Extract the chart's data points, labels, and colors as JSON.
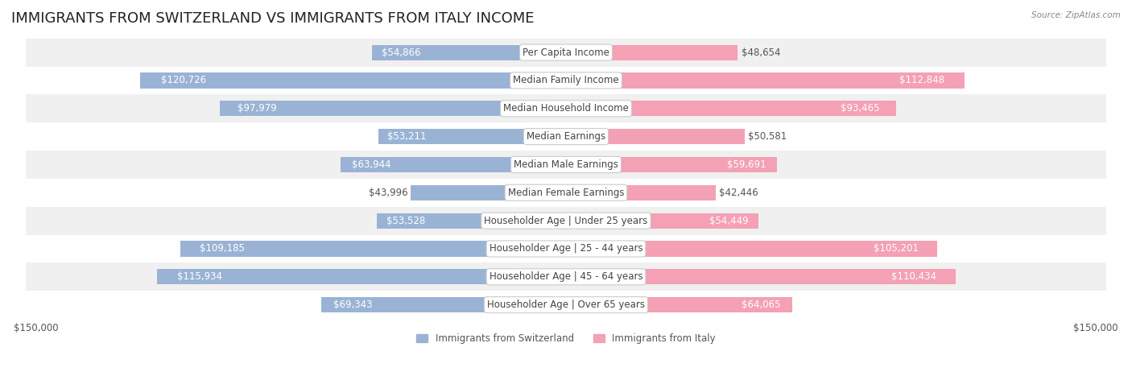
{
  "title": "IMMIGRANTS FROM SWITZERLAND VS IMMIGRANTS FROM ITALY INCOME",
  "source": "Source: ZipAtlas.com",
  "categories": [
    "Per Capita Income",
    "Median Family Income",
    "Median Household Income",
    "Median Earnings",
    "Median Male Earnings",
    "Median Female Earnings",
    "Householder Age | Under 25 years",
    "Householder Age | 25 - 44 years",
    "Householder Age | 45 - 64 years",
    "Householder Age | Over 65 years"
  ],
  "switzerland_values": [
    54866,
    120726,
    97979,
    53211,
    63944,
    43996,
    53528,
    109185,
    115934,
    69343
  ],
  "italy_values": [
    48654,
    112848,
    93465,
    50581,
    59691,
    42446,
    54449,
    105201,
    110434,
    64065
  ],
  "switzerland_labels": [
    "$54,866",
    "$120,726",
    "$97,979",
    "$53,211",
    "$63,944",
    "$43,996",
    "$53,528",
    "$109,185",
    "$115,934",
    "$69,343"
  ],
  "italy_labels": [
    "$48,654",
    "$112,848",
    "$93,465",
    "$50,581",
    "$59,691",
    "$42,446",
    "$54,449",
    "$105,201",
    "$110,434",
    "$64,065"
  ],
  "switzerland_color": "#9ab3d5",
  "italy_color": "#f4a0b5",
  "switzerland_color_dark": "#7096bf",
  "italy_color_dark": "#f07090",
  "max_value": 150000,
  "bar_height": 0.55,
  "row_bg_color_odd": "#f0f0f0",
  "row_bg_color_even": "#ffffff",
  "legend_switzerland": "Immigrants from Switzerland",
  "legend_italy": "Immigrants from Italy",
  "title_fontsize": 13,
  "label_fontsize": 8.5,
  "category_fontsize": 8.5,
  "axis_label_fontsize": 8.5,
  "background_color": "#ffffff"
}
